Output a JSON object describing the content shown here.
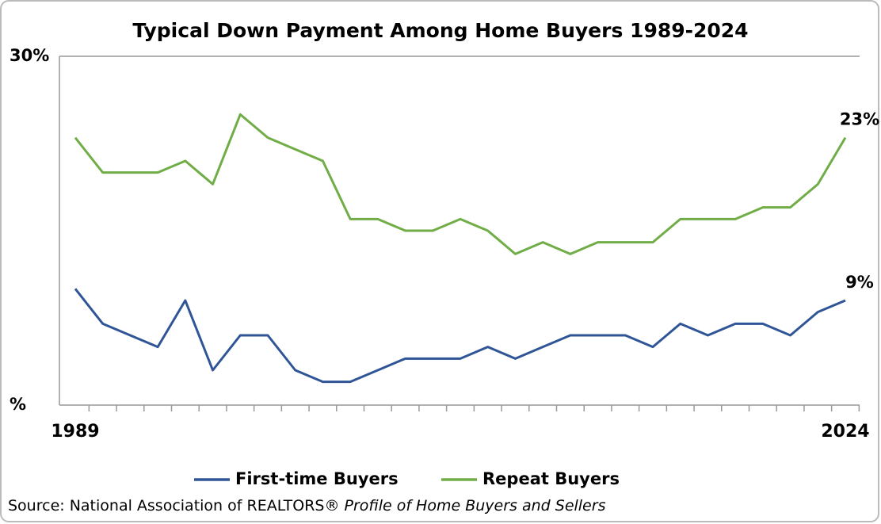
{
  "chart_data": {
    "type": "line",
    "title": "Typical Down Payment Among Home Buyers 1989-2024",
    "categories": [
      "1989",
      null,
      null,
      null,
      null,
      null,
      null,
      null,
      null,
      null,
      null,
      null,
      null,
      null,
      null,
      null,
      null,
      null,
      null,
      null,
      null,
      null,
      null,
      null,
      null,
      null,
      null,
      null,
      "2024"
    ],
    "series": [
      {
        "name": "First-time Buyers",
        "color": "#2f5597",
        "values": [
          10,
          7,
          6,
          5,
          9,
          3,
          6,
          6,
          3,
          2,
          2,
          3,
          4,
          4,
          4,
          5,
          4,
          5,
          6,
          6,
          6,
          5,
          7,
          6,
          7,
          7,
          6,
          8,
          9
        ],
        "value_labels": [
          null,
          null,
          null,
          null,
          null,
          null,
          null,
          null,
          null,
          null,
          null,
          null,
          null,
          null,
          null,
          null,
          null,
          null,
          null,
          null,
          null,
          null,
          null,
          null,
          null,
          null,
          null,
          null,
          "9%"
        ]
      },
      {
        "name": "Repeat Buyers",
        "color": "#70ad47",
        "values": [
          23,
          20,
          20,
          20,
          21,
          19,
          25,
          23,
          22,
          21,
          16,
          16,
          15,
          15,
          16,
          15,
          13,
          14,
          13,
          14,
          14,
          14,
          16,
          16,
          16,
          17,
          17,
          19,
          23
        ],
        "value_labels": [
          null,
          null,
          null,
          null,
          null,
          null,
          null,
          null,
          null,
          null,
          null,
          null,
          null,
          null,
          null,
          null,
          null,
          null,
          null,
          null,
          null,
          null,
          null,
          null,
          null,
          null,
          null,
          null,
          "23%"
        ]
      }
    ],
    "ylim": [
      0,
      30
    ],
    "yticks": [
      {
        "value": 0,
        "label": "%"
      },
      {
        "value": 30,
        "label": "30%"
      }
    ],
    "grid": true,
    "legend": "bottom",
    "source": "Source: National Association of REALTORS®",
    "source_title": "Profile of Home Buyers and Sellers"
  }
}
